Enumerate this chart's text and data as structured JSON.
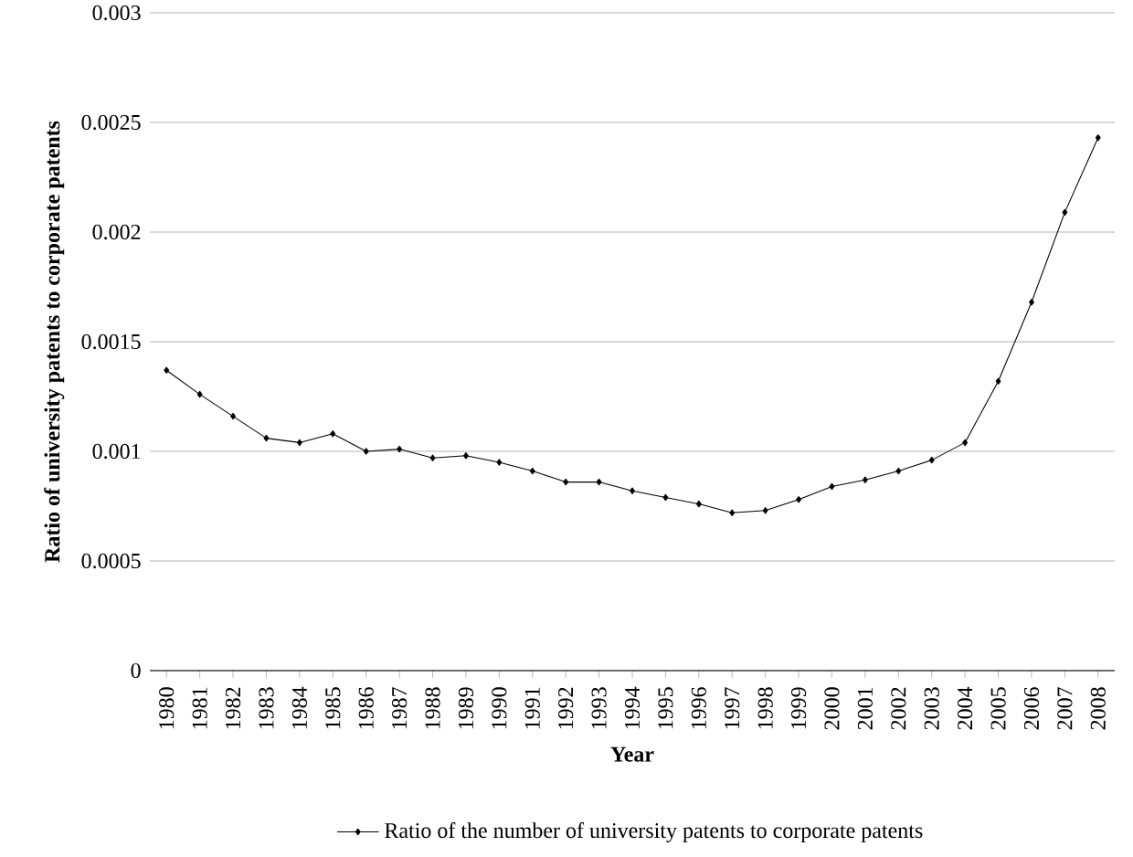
{
  "chart_data": {
    "type": "line",
    "xlabel": "Year",
    "ylabel": "Ratio of university patents to corporate patents",
    "categories": [
      "1980",
      "1981",
      "1982",
      "1983",
      "1984",
      "1985",
      "1986",
      "1987",
      "1988",
      "1989",
      "1990",
      "1991",
      "1992",
      "1993",
      "1994",
      "1995",
      "1996",
      "1997",
      "1998",
      "1999",
      "2000",
      "2001",
      "2002",
      "2003",
      "2004",
      "2005",
      "2006",
      "2007",
      "2008"
    ],
    "series": [
      {
        "name": "Ratio of the number of university patents to corporate patents",
        "color": "#000000",
        "values": [
          0.00137,
          0.00126,
          0.00116,
          0.00106,
          0.00104,
          0.00108,
          0.001,
          0.00101,
          0.00097,
          0.00098,
          0.00095,
          0.00091,
          0.00086,
          0.00086,
          0.00082,
          0.00079,
          0.00076,
          0.00072,
          0.00073,
          0.00078,
          0.00084,
          0.00087,
          0.00091,
          0.00096,
          0.00104,
          0.00132,
          0.00168,
          0.00209,
          0.00243
        ]
      }
    ],
    "ylim": [
      0,
      0.003
    ],
    "yticks": [
      0,
      0.0005,
      0.001,
      0.0015,
      0.002,
      0.0025,
      0.003
    ],
    "grid": "y",
    "legend": "bottom",
    "marker": "diamond",
    "line_style": "solid"
  }
}
